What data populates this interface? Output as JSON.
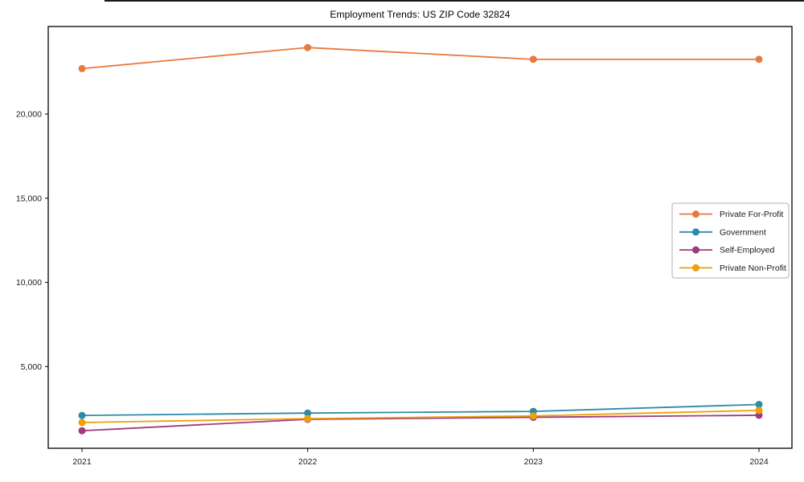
{
  "chart_data": {
    "type": "line",
    "title": "Employment Trends: US ZIP Code 32824",
    "categories": [
      "2021",
      "2022",
      "2023",
      "2024"
    ],
    "series": [
      {
        "name": "Private For-Profit",
        "color": "#E87A3F",
        "values": [
          22700,
          23950,
          23250,
          23250
        ]
      },
      {
        "name": "Government",
        "color": "#2E8BA8",
        "values": [
          2100,
          2240,
          2340,
          2750
        ]
      },
      {
        "name": "Self-Employed",
        "color": "#9E3B7E",
        "values": [
          1190,
          1870,
          1990,
          2110
        ]
      },
      {
        "name": "Private Non-Profit",
        "color": "#EEA00B",
        "values": [
          1680,
          1910,
          2070,
          2400
        ]
      }
    ],
    "xlabel": "",
    "ylabel": "",
    "ylim": [
      150,
      25200
    ],
    "yticks": [
      5000,
      10000,
      15000,
      20000
    ],
    "ytick_labels": [
      "5,000",
      "10,000",
      "15,000",
      "20,000"
    ],
    "marker": "circle",
    "grid": false,
    "legend_position": "center right",
    "axis_color": "#000000",
    "text_color": "#1a1a1a",
    "legend_border_color": "#b0b0b0"
  }
}
